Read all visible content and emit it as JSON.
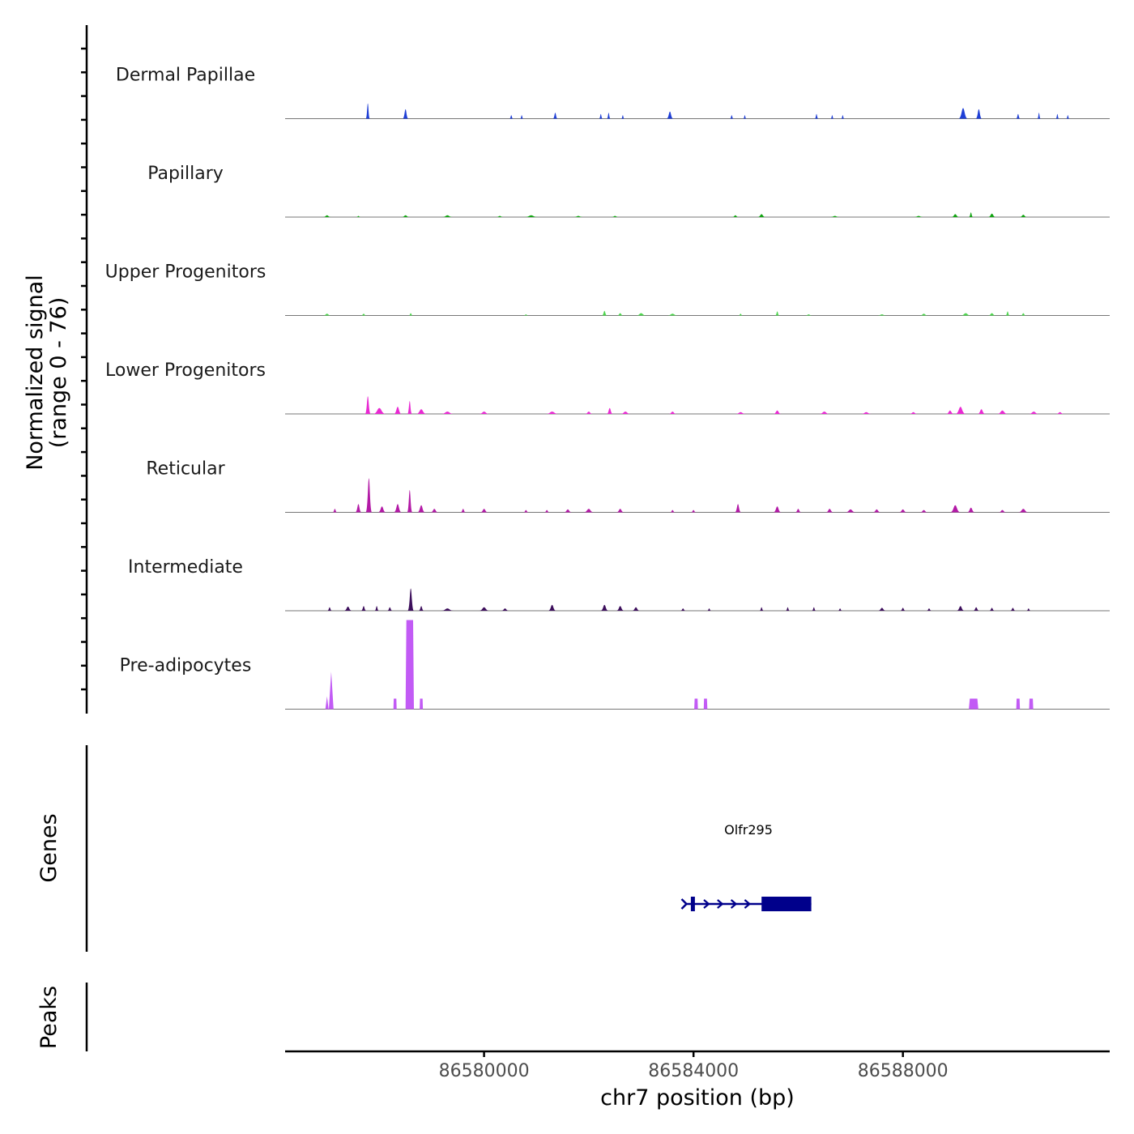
{
  "chart_data": {
    "type": "area",
    "title": "",
    "ylabel_line1": "Normalized signal",
    "ylabel_line2": "(range 0 - 76)",
    "y_range": [
      0,
      76
    ],
    "xlabel": "chr7 position (bp)",
    "chromosome": "chr7",
    "x_range": [
      86576200,
      86591950
    ],
    "x_ticks": [
      86580000,
      86584000,
      86588000
    ],
    "x_tick_labels": [
      "86580000",
      "86584000",
      "86588000"
    ],
    "tracks": [
      {
        "name": "Dermal Papillae",
        "color": "#1f3fd6",
        "peaks": [
          {
            "pos": 86577780,
            "width": 80,
            "value": 13
          },
          {
            "pos": 86578500,
            "width": 110,
            "value": 8
          },
          {
            "pos": 86580520,
            "width": 70,
            "value": 3
          },
          {
            "pos": 86580720,
            "width": 50,
            "value": 3
          },
          {
            "pos": 86581360,
            "width": 90,
            "value": 5
          },
          {
            "pos": 86582230,
            "width": 70,
            "value": 4
          },
          {
            "pos": 86582380,
            "width": 70,
            "value": 5
          },
          {
            "pos": 86582650,
            "width": 60,
            "value": 3
          },
          {
            "pos": 86583550,
            "width": 130,
            "value": 6
          },
          {
            "pos": 86584730,
            "width": 70,
            "value": 3
          },
          {
            "pos": 86584980,
            "width": 50,
            "value": 3
          },
          {
            "pos": 86586350,
            "width": 70,
            "value": 4
          },
          {
            "pos": 86586650,
            "width": 60,
            "value": 3
          },
          {
            "pos": 86586850,
            "width": 60,
            "value": 3
          },
          {
            "pos": 86589150,
            "width": 180,
            "value": 9
          },
          {
            "pos": 86589450,
            "width": 120,
            "value": 8
          },
          {
            "pos": 86590200,
            "width": 80,
            "value": 4
          },
          {
            "pos": 86590600,
            "width": 60,
            "value": 5
          },
          {
            "pos": 86590950,
            "width": 60,
            "value": 4
          },
          {
            "pos": 86591150,
            "width": 50,
            "value": 3
          }
        ]
      },
      {
        "name": "Papillary",
        "color": "#13a313",
        "peaks": [
          {
            "pos": 86577000,
            "width": 150,
            "value": 1.5
          },
          {
            "pos": 86577600,
            "width": 90,
            "value": 1
          },
          {
            "pos": 86578500,
            "width": 150,
            "value": 1.5
          },
          {
            "pos": 86579300,
            "width": 200,
            "value": 1.5
          },
          {
            "pos": 86580300,
            "width": 150,
            "value": 1
          },
          {
            "pos": 86580900,
            "width": 250,
            "value": 1.5
          },
          {
            "pos": 86581800,
            "width": 200,
            "value": 1
          },
          {
            "pos": 86582500,
            "width": 150,
            "value": 1
          },
          {
            "pos": 86584800,
            "width": 120,
            "value": 1.5
          },
          {
            "pos": 86585300,
            "width": 150,
            "value": 2.5
          },
          {
            "pos": 86586700,
            "width": 200,
            "value": 1
          },
          {
            "pos": 86588300,
            "width": 200,
            "value": 1
          },
          {
            "pos": 86589000,
            "width": 150,
            "value": 2.5
          },
          {
            "pos": 86589300,
            "width": 80,
            "value": 4
          },
          {
            "pos": 86589700,
            "width": 150,
            "value": 3
          },
          {
            "pos": 86590300,
            "width": 150,
            "value": 2
          }
        ]
      },
      {
        "name": "Upper Progenitors",
        "color": "#4fd64f",
        "peaks": [
          {
            "pos": 86577000,
            "width": 150,
            "value": 1.5
          },
          {
            "pos": 86577700,
            "width": 100,
            "value": 1.5
          },
          {
            "pos": 86578600,
            "width": 80,
            "value": 2
          },
          {
            "pos": 86580800,
            "width": 100,
            "value": 1
          },
          {
            "pos": 86582300,
            "width": 100,
            "value": 4
          },
          {
            "pos": 86582600,
            "width": 120,
            "value": 2
          },
          {
            "pos": 86583000,
            "width": 200,
            "value": 2
          },
          {
            "pos": 86583600,
            "width": 200,
            "value": 1.5
          },
          {
            "pos": 86584900,
            "width": 80,
            "value": 1.5
          },
          {
            "pos": 86585600,
            "width": 80,
            "value": 3.5
          },
          {
            "pos": 86586200,
            "width": 150,
            "value": 1
          },
          {
            "pos": 86587600,
            "width": 200,
            "value": 1
          },
          {
            "pos": 86588400,
            "width": 150,
            "value": 1.5
          },
          {
            "pos": 86589200,
            "width": 200,
            "value": 2
          },
          {
            "pos": 86589700,
            "width": 150,
            "value": 2
          },
          {
            "pos": 86590000,
            "width": 80,
            "value": 3.5
          },
          {
            "pos": 86590300,
            "width": 100,
            "value": 2
          }
        ]
      },
      {
        "name": "Lower Progenitors",
        "color": "#e82ad2",
        "peaks": [
          {
            "pos": 86577780,
            "width": 110,
            "value": 15
          },
          {
            "pos": 86578000,
            "width": 250,
            "value": 5
          },
          {
            "pos": 86578350,
            "width": 150,
            "value": 6
          },
          {
            "pos": 86578580,
            "width": 90,
            "value": 11
          },
          {
            "pos": 86578800,
            "width": 200,
            "value": 4
          },
          {
            "pos": 86579300,
            "width": 250,
            "value": 2
          },
          {
            "pos": 86580000,
            "width": 200,
            "value": 2
          },
          {
            "pos": 86581300,
            "width": 250,
            "value": 2
          },
          {
            "pos": 86582000,
            "width": 150,
            "value": 2
          },
          {
            "pos": 86582400,
            "width": 120,
            "value": 5
          },
          {
            "pos": 86582700,
            "width": 200,
            "value": 2
          },
          {
            "pos": 86583600,
            "width": 150,
            "value": 2
          },
          {
            "pos": 86584900,
            "width": 200,
            "value": 1.5
          },
          {
            "pos": 86585600,
            "width": 150,
            "value": 3
          },
          {
            "pos": 86586500,
            "width": 200,
            "value": 2
          },
          {
            "pos": 86587300,
            "width": 200,
            "value": 1.5
          },
          {
            "pos": 86588200,
            "width": 150,
            "value": 1.5
          },
          {
            "pos": 86588900,
            "width": 150,
            "value": 3
          },
          {
            "pos": 86589100,
            "width": 200,
            "value": 6
          },
          {
            "pos": 86589500,
            "width": 150,
            "value": 4
          },
          {
            "pos": 86589900,
            "width": 200,
            "value": 3
          },
          {
            "pos": 86590500,
            "width": 200,
            "value": 2
          },
          {
            "pos": 86591000,
            "width": 150,
            "value": 1.5
          }
        ]
      },
      {
        "name": "Reticular",
        "color": "#b31aa6",
        "peaks": [
          {
            "pos": 86577150,
            "width": 90,
            "value": 3
          },
          {
            "pos": 86577600,
            "width": 120,
            "value": 7
          },
          {
            "pos": 86577800,
            "width": 120,
            "value": 29
          },
          {
            "pos": 86578050,
            "width": 150,
            "value": 5
          },
          {
            "pos": 86578350,
            "width": 150,
            "value": 7
          },
          {
            "pos": 86578580,
            "width": 100,
            "value": 19
          },
          {
            "pos": 86578800,
            "width": 150,
            "value": 6
          },
          {
            "pos": 86579050,
            "width": 150,
            "value": 3
          },
          {
            "pos": 86579600,
            "width": 100,
            "value": 3
          },
          {
            "pos": 86580000,
            "width": 150,
            "value": 3
          },
          {
            "pos": 86580800,
            "width": 100,
            "value": 2
          },
          {
            "pos": 86581200,
            "width": 100,
            "value": 2
          },
          {
            "pos": 86581600,
            "width": 150,
            "value": 2.5
          },
          {
            "pos": 86582000,
            "width": 200,
            "value": 3
          },
          {
            "pos": 86582600,
            "width": 150,
            "value": 3
          },
          {
            "pos": 86583600,
            "width": 100,
            "value": 2
          },
          {
            "pos": 86584000,
            "width": 100,
            "value": 2
          },
          {
            "pos": 86584850,
            "width": 120,
            "value": 7
          },
          {
            "pos": 86585600,
            "width": 150,
            "value": 5
          },
          {
            "pos": 86586000,
            "width": 120,
            "value": 3
          },
          {
            "pos": 86586600,
            "width": 150,
            "value": 3
          },
          {
            "pos": 86587000,
            "width": 200,
            "value": 2.5
          },
          {
            "pos": 86587500,
            "width": 150,
            "value": 2.5
          },
          {
            "pos": 86588000,
            "width": 150,
            "value": 2.5
          },
          {
            "pos": 86588400,
            "width": 150,
            "value": 2
          },
          {
            "pos": 86589000,
            "width": 200,
            "value": 6
          },
          {
            "pos": 86589300,
            "width": 150,
            "value": 4
          },
          {
            "pos": 86589900,
            "width": 150,
            "value": 2
          },
          {
            "pos": 86590300,
            "width": 200,
            "value": 3
          }
        ]
      },
      {
        "name": "Intermediate",
        "color": "#3d0f5c",
        "peaks": [
          {
            "pos": 86577050,
            "width": 90,
            "value": 3
          },
          {
            "pos": 86577400,
            "width": 150,
            "value": 3.5
          },
          {
            "pos": 86577700,
            "width": 100,
            "value": 4
          },
          {
            "pos": 86577950,
            "width": 80,
            "value": 4
          },
          {
            "pos": 86578200,
            "width": 100,
            "value": 3
          },
          {
            "pos": 86578600,
            "width": 120,
            "value": 19
          },
          {
            "pos": 86578800,
            "width": 100,
            "value": 4
          },
          {
            "pos": 86579300,
            "width": 250,
            "value": 2
          },
          {
            "pos": 86580000,
            "width": 200,
            "value": 3
          },
          {
            "pos": 86580400,
            "width": 150,
            "value": 2
          },
          {
            "pos": 86581300,
            "width": 150,
            "value": 5
          },
          {
            "pos": 86582300,
            "width": 150,
            "value": 5
          },
          {
            "pos": 86582600,
            "width": 150,
            "value": 4
          },
          {
            "pos": 86582900,
            "width": 150,
            "value": 3
          },
          {
            "pos": 86583800,
            "width": 100,
            "value": 2
          },
          {
            "pos": 86584300,
            "width": 80,
            "value": 2
          },
          {
            "pos": 86585300,
            "width": 80,
            "value": 3
          },
          {
            "pos": 86585800,
            "width": 80,
            "value": 3
          },
          {
            "pos": 86586300,
            "width": 80,
            "value": 3
          },
          {
            "pos": 86586800,
            "width": 80,
            "value": 2
          },
          {
            "pos": 86587600,
            "width": 150,
            "value": 2.5
          },
          {
            "pos": 86588000,
            "width": 100,
            "value": 2.5
          },
          {
            "pos": 86588500,
            "width": 100,
            "value": 2
          },
          {
            "pos": 86589100,
            "width": 150,
            "value": 4
          },
          {
            "pos": 86589400,
            "width": 120,
            "value": 3
          },
          {
            "pos": 86589700,
            "width": 100,
            "value": 2.5
          },
          {
            "pos": 86590100,
            "width": 100,
            "value": 2.5
          },
          {
            "pos": 86590400,
            "width": 80,
            "value": 2
          }
        ]
      },
      {
        "name": "Pre-adipocytes",
        "color": "#c25bf5",
        "peaks": [
          {
            "pos": 86577000,
            "width": 40,
            "value": 11,
            "shape": "spike"
          },
          {
            "pos": 86577080,
            "width": 90,
            "value": 32,
            "shape": "spike"
          },
          {
            "pos": 86578300,
            "width": 60,
            "value": 9,
            "shape": "block"
          },
          {
            "pos": 86578580,
            "width": 160,
            "value": 76,
            "shape": "block"
          },
          {
            "pos": 86578800,
            "width": 60,
            "value": 9,
            "shape": "block"
          },
          {
            "pos": 86584050,
            "width": 70,
            "value": 9,
            "shape": "block"
          },
          {
            "pos": 86584230,
            "width": 70,
            "value": 9,
            "shape": "block"
          },
          {
            "pos": 86589350,
            "width": 180,
            "value": 9,
            "shape": "block"
          },
          {
            "pos": 86590200,
            "width": 70,
            "value": 9,
            "shape": "block"
          },
          {
            "pos": 86590450,
            "width": 80,
            "value": 9,
            "shape": "block"
          }
        ]
      }
    ],
    "genes_label": "Genes",
    "peaks_label": "Peaks",
    "genes": [
      {
        "name": "Olfr295",
        "color": "#00008b",
        "start": 86583850,
        "end": 86586250,
        "thick_start": 86585300,
        "thick_end": 86586250,
        "strand": "+",
        "small_exon": [
          86583950,
          86584000
        ]
      }
    ]
  }
}
